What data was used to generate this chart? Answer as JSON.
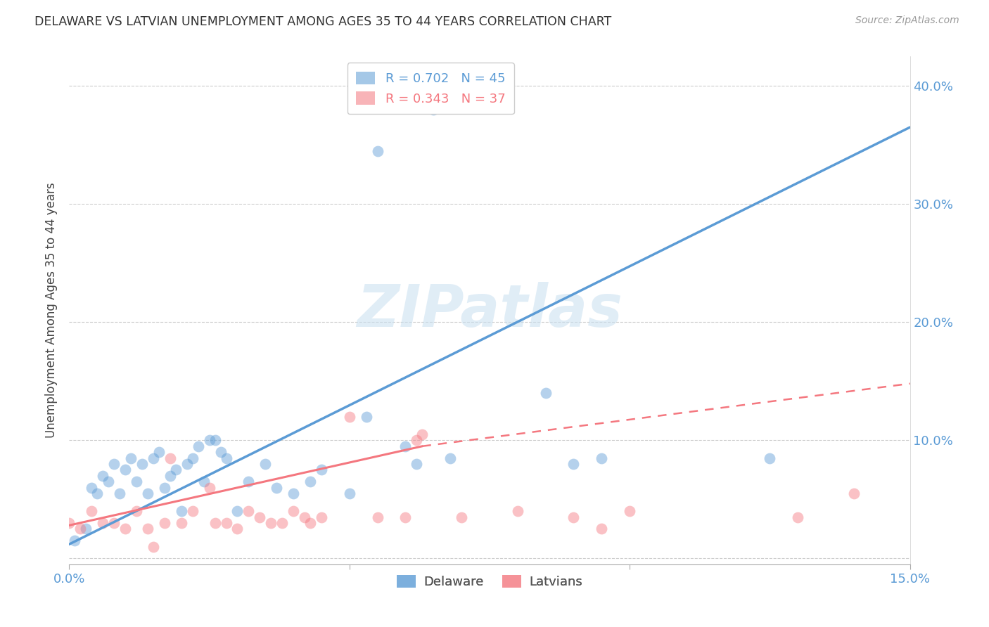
{
  "title": "DELAWARE VS LATVIAN UNEMPLOYMENT AMONG AGES 35 TO 44 YEARS CORRELATION CHART",
  "source": "Source: ZipAtlas.com",
  "ylabel": "Unemployment Among Ages 35 to 44 years",
  "xlim": [
    0.0,
    0.15
  ],
  "ylim": [
    -0.005,
    0.425
  ],
  "legend_upper": [
    {
      "label": "R = 0.702   N = 45",
      "color": "#5b9bd5"
    },
    {
      "label": "R = 0.343   N = 37",
      "color": "#f4777f"
    }
  ],
  "legend_bottom": [
    {
      "label": "Delaware",
      "color": "#5b9bd5"
    },
    {
      "label": "Latvians",
      "color": "#f4777f"
    }
  ],
  "delaware_scatter_x": [
    0.001,
    0.003,
    0.004,
    0.005,
    0.006,
    0.007,
    0.008,
    0.009,
    0.01,
    0.011,
    0.012,
    0.013,
    0.014,
    0.015,
    0.016,
    0.017,
    0.018,
    0.019,
    0.02,
    0.021,
    0.022,
    0.023,
    0.024,
    0.025,
    0.026,
    0.027,
    0.028,
    0.03,
    0.032,
    0.035,
    0.037,
    0.04,
    0.043,
    0.045,
    0.05,
    0.053,
    0.055,
    0.06,
    0.062,
    0.065,
    0.068,
    0.085,
    0.09,
    0.095,
    0.125
  ],
  "delaware_scatter_y": [
    0.015,
    0.025,
    0.06,
    0.055,
    0.07,
    0.065,
    0.08,
    0.055,
    0.075,
    0.085,
    0.065,
    0.08,
    0.055,
    0.085,
    0.09,
    0.06,
    0.07,
    0.075,
    0.04,
    0.08,
    0.085,
    0.095,
    0.065,
    0.1,
    0.1,
    0.09,
    0.085,
    0.04,
    0.065,
    0.08,
    0.06,
    0.055,
    0.065,
    0.075,
    0.055,
    0.12,
    0.345,
    0.095,
    0.08,
    0.38,
    0.085,
    0.14,
    0.08,
    0.085,
    0.085
  ],
  "latvian_scatter_x": [
    0.0,
    0.002,
    0.004,
    0.006,
    0.008,
    0.01,
    0.012,
    0.014,
    0.015,
    0.017,
    0.018,
    0.02,
    0.022,
    0.025,
    0.026,
    0.028,
    0.03,
    0.032,
    0.034,
    0.036,
    0.038,
    0.04,
    0.042,
    0.043,
    0.045,
    0.05,
    0.055,
    0.06,
    0.062,
    0.063,
    0.07,
    0.08,
    0.09,
    0.095,
    0.1,
    0.13,
    0.14
  ],
  "latvian_scatter_y": [
    0.03,
    0.025,
    0.04,
    0.03,
    0.03,
    0.025,
    0.04,
    0.025,
    0.01,
    0.03,
    0.085,
    0.03,
    0.04,
    0.06,
    0.03,
    0.03,
    0.025,
    0.04,
    0.035,
    0.03,
    0.03,
    0.04,
    0.035,
    0.03,
    0.035,
    0.12,
    0.035,
    0.035,
    0.1,
    0.105,
    0.035,
    0.04,
    0.035,
    0.025,
    0.04,
    0.035,
    0.055
  ],
  "delaware_line_x": [
    0.0,
    0.15
  ],
  "delaware_line_y": [
    0.012,
    0.365
  ],
  "latvian_solid_line_x": [
    0.0,
    0.063
  ],
  "latvian_solid_line_y": [
    0.028,
    0.095
  ],
  "latvian_dashed_line_x": [
    0.063,
    0.15
  ],
  "latvian_dashed_line_y": [
    0.095,
    0.148
  ],
  "delaware_color": "#5b9bd5",
  "latvian_color": "#f4777f",
  "watermark_text": "ZIPatlas",
  "watermark_color": "#c8dff0",
  "background_color": "#ffffff",
  "grid_color": "#cccccc",
  "title_color": "#333333",
  "source_color": "#999999",
  "tick_color": "#5b9bd5"
}
